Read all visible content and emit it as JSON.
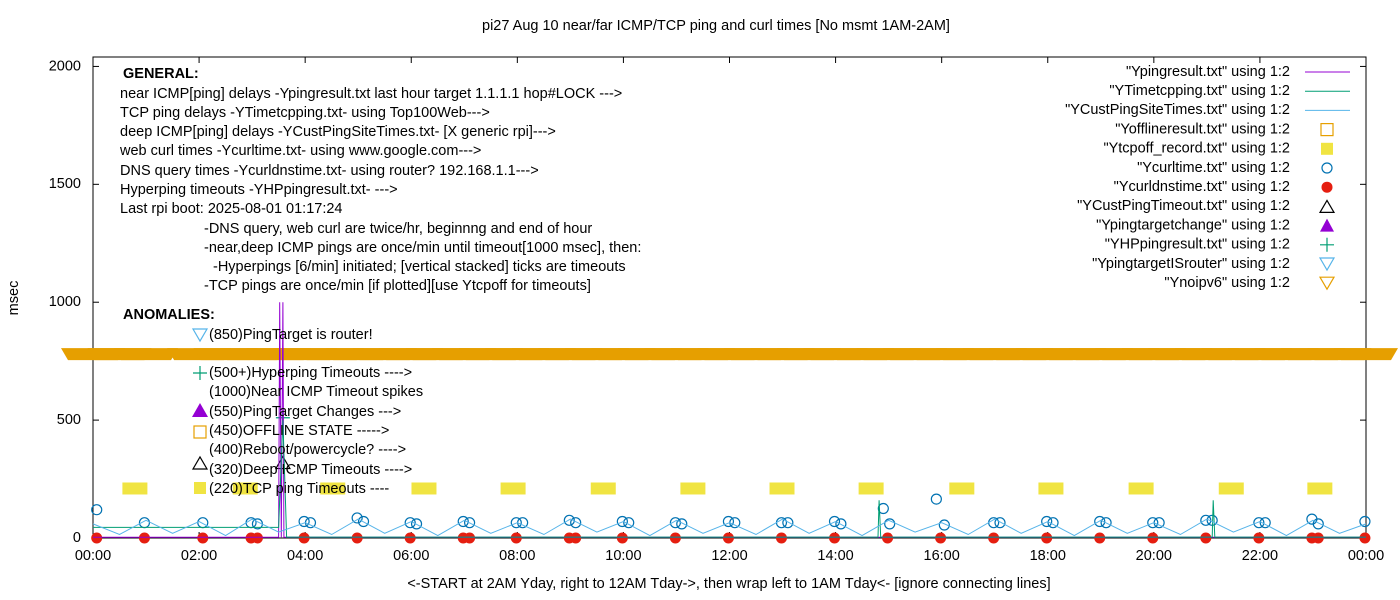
{
  "chart_data": {
    "type": "line",
    "title": "pi27 Aug 10  near/far ICMP/TCP ping and curl times [No msmt 1AM-2AM]",
    "x_label": "<-START at 2AM Yday, right to 12AM Tday->, then wrap left to 1AM Tday<- [ignore connecting lines]",
    "y_label": "msec",
    "xlim": [
      0,
      24
    ],
    "ylim": [
      0,
      2040
    ],
    "xticks": [
      {
        "value": 0,
        "label": "00:00"
      },
      {
        "value": 2,
        "label": "02:00"
      },
      {
        "value": 4,
        "label": "04:00"
      },
      {
        "value": 6,
        "label": "06:00"
      },
      {
        "value": 8,
        "label": "08:00"
      },
      {
        "value": 10,
        "label": "10:00"
      },
      {
        "value": 12,
        "label": "12:00"
      },
      {
        "value": 14,
        "label": "14:00"
      },
      {
        "value": 16,
        "label": "16:00"
      },
      {
        "value": 18,
        "label": "18:00"
      },
      {
        "value": 20,
        "label": "20:00"
      },
      {
        "value": 22,
        "label": "22:00"
      },
      {
        "value": 24,
        "label": "00:00"
      }
    ],
    "yticks": [
      0,
      500,
      1000,
      1500,
      2000
    ],
    "legend_position": "top-right",
    "series": [
      {
        "name": "\"Ypingresult.txt\" using 1:2",
        "color": "#9400d3",
        "style": "line",
        "x": [
          0,
          3.5,
          3.52,
          3.55,
          3.58,
          3.6,
          24
        ],
        "values": [
          3,
          3,
          1000,
          3,
          1000,
          3,
          3
        ]
      },
      {
        "name": "\"YTimetcpping.txt\" using 1:2",
        "color": "#009e73",
        "style": "line",
        "x": [
          0,
          3.5,
          3.58,
          3.65,
          14.8,
          14.82,
          14.85,
          21.1,
          21.12,
          21.15,
          24
        ],
        "values": [
          45,
          45,
          500,
          4,
          4,
          160,
          4,
          4,
          160,
          4,
          4
        ]
      },
      {
        "name": "\"YCustPingSiteTimes.txt\" using 1:2",
        "color": "#56b4e9",
        "style": "line",
        "x": [
          0,
          0.5,
          1,
          1.5,
          2,
          2.5,
          3,
          3.5,
          4,
          4.5,
          5,
          5.5,
          6,
          6.5,
          7,
          7.5,
          8,
          8.5,
          9,
          9.5,
          10,
          10.5,
          11,
          11.5,
          12,
          12.5,
          13,
          13.5,
          14,
          14.5,
          15,
          15.5,
          16,
          16.5,
          17,
          17.5,
          18,
          18.5,
          19,
          19.5,
          20,
          20.5,
          21,
          21.5,
          22,
          22.5,
          23,
          23.5,
          24
        ],
        "values": [
          60,
          15,
          75,
          20,
          70,
          10,
          80,
          25,
          65,
          15,
          80,
          20,
          70,
          10,
          75,
          20,
          65,
          15,
          80,
          25,
          70,
          10,
          75,
          20,
          65,
          15,
          80,
          20,
          70,
          10,
          75,
          25,
          65,
          15,
          80,
          20,
          70,
          10,
          75,
          20,
          65,
          15,
          80,
          25,
          70,
          10,
          75,
          20,
          60
        ]
      },
      {
        "name": "\"Yofflineresult.txt\" using 1:2",
        "color": "#e69f00",
        "style": "point",
        "marker": "square-open",
        "x": [],
        "values": []
      },
      {
        "name": "\"Ytcpoff_record.txt\" using 1:2",
        "color": "#f0e442",
        "style": "point",
        "marker": "block",
        "x": [
          0.79,
          2.87,
          4.52,
          6.24,
          7.92,
          9.62,
          11.31,
          12.99,
          14.67,
          16.38,
          18.06,
          19.76,
          21.46,
          23.13
        ],
        "values": [
          210,
          210,
          210,
          210,
          210,
          210,
          210,
          210,
          210,
          210,
          210,
          210,
          210,
          210
        ]
      },
      {
        "name": "\"Ycurltime.txt\" using 1:2",
        "color": "#0072b2",
        "style": "point",
        "marker": "circle-open",
        "x": [
          0.07,
          0.97,
          2.07,
          2.98,
          3.1,
          3.98,
          4.1,
          4.98,
          5.1,
          5.98,
          6.1,
          6.98,
          7.1,
          7.98,
          8.1,
          8.98,
          9.1,
          9.98,
          10.1,
          10.98,
          11.1,
          11.98,
          12.1,
          12.98,
          13.1,
          13.98,
          14.1,
          14.9,
          15.02,
          15.9,
          16.05,
          16.98,
          17.1,
          17.98,
          18.1,
          18.98,
          19.1,
          19.98,
          20.1,
          20.98,
          21.1,
          21.98,
          22.1,
          22.98,
          23.1,
          23.98
        ],
        "values": [
          120,
          65,
          65,
          65,
          60,
          70,
          65,
          85,
          70,
          65,
          60,
          70,
          65,
          65,
          65,
          75,
          65,
          70,
          65,
          65,
          60,
          70,
          65,
          65,
          65,
          70,
          60,
          125,
          60,
          165,
          55,
          65,
          65,
          70,
          65,
          70,
          65,
          65,
          65,
          75,
          75,
          65,
          65,
          80,
          60,
          70
        ]
      },
      {
        "name": "\"Ycurldnstime.txt\" using 1:2",
        "color": "#e51e10",
        "style": "point",
        "marker": "circle",
        "x": [
          0.07,
          0.97,
          2.07,
          2.98,
          3.1,
          3.98,
          4.98,
          5.98,
          6.98,
          7.1,
          7.98,
          8.98,
          9.1,
          9.98,
          10.98,
          11.98,
          12.98,
          13.98,
          14.98,
          15.98,
          16.98,
          17.98,
          18.98,
          19.98,
          20.98,
          21.98,
          22.98,
          23.1,
          23.98
        ],
        "values": [
          0,
          0,
          0,
          0,
          0,
          0,
          0,
          0,
          0,
          0,
          0,
          0,
          0,
          0,
          0,
          0,
          0,
          0,
          0,
          0,
          0,
          0,
          0,
          0,
          0,
          0,
          0,
          0,
          0
        ]
      },
      {
        "name": "\"YCustPingTimeout.txt\" using 1:2",
        "color": "#000000",
        "style": "point",
        "marker": "triangle-open",
        "x": [
          3.58
        ],
        "values": [
          320
        ]
      },
      {
        "name": "\"Ypingtargetchange\" using 1:2",
        "color": "#9400d3",
        "style": "point",
        "marker": "triangle",
        "x": [],
        "values": []
      },
      {
        "name": "\"YHPpingresult.txt\" using 1:2",
        "color": "#009e73",
        "style": "point",
        "marker": "plus",
        "x": [
          3.58
        ],
        "values": [
          510
        ]
      },
      {
        "name": "\"YpingtargetISrouter\" using 1:2",
        "color": "#56b4e9",
        "style": "point",
        "marker": "triangle-down-open",
        "x": [],
        "values": []
      },
      {
        "name": "\"Ynoipv6\" using 1:2",
        "color": "#e69f00",
        "style": "point",
        "marker": "triangle-down-band",
        "x": [
          0,
          0.5,
          1,
          2,
          2.5,
          3,
          3.5,
          4,
          4.5,
          5,
          5.5,
          6,
          6.5,
          7,
          7.5,
          8,
          8.5,
          9,
          9.5,
          10,
          10.5,
          11,
          11.5,
          12,
          12.5,
          13,
          13.5,
          14,
          14.5,
          15,
          15.5,
          16,
          16.5,
          17,
          17.5,
          18,
          18.5,
          19,
          19.5,
          20,
          20.5,
          21,
          21.5,
          22,
          22.5,
          23,
          23.5,
          24
        ],
        "values": [
          780,
          780,
          780,
          780,
          780,
          780,
          780,
          780,
          780,
          780,
          780,
          780,
          780,
          780,
          780,
          780,
          780,
          780,
          780,
          780,
          780,
          780,
          780,
          780,
          780,
          780,
          780,
          780,
          780,
          780,
          780,
          780,
          780,
          780,
          780,
          780,
          780,
          780,
          780,
          780,
          780,
          780,
          780,
          780,
          780,
          780,
          780,
          780
        ]
      }
    ],
    "annotations": [
      "GENERAL:",
      "near ICMP[ping] delays -Ypingresult.txt last hour target 1.1.1.1 hop#LOCK --->",
      "TCP ping delays -YTimetcpping.txt- using Top100Web--->",
      "deep ICMP[ping] delays -YCustPingSiteTimes.txt- [X generic rpi]--->",
      "web curl times -Ycurltime.txt- using www.google.com--->",
      "DNS query times -Ycurldnstime.txt- using router? 192.168.1.1--->",
      "Hyperping timeouts -YHPpingresult.txt- --->",
      "Last rpi boot: 2025-08-01 01:17:24",
      "-DNS query, web curl are twice/hr, beginnng and end of hour",
      "-near,deep ICMP pings are once/min until timeout[1000 msec], then:",
      "-Hyperpings [6/min] initiated; [vertical stacked] ticks are timeouts",
      "-TCP pings are once/min [if plotted][use Ytcpoff for timeouts]",
      "ANOMALIES:",
      "(850)PingTarget is router!",
      "(500+)Hyperping Timeouts ---->",
      "(1000)Near ICMP Timeout spikes",
      "(550)PingTarget Changes --->",
      "(450)OFFLINE STATE ----->",
      "(400)Reboot/powercycle? ---->",
      "(320)Deep ICMP Timeouts ---->",
      "(220)TCP ping Timeouts ----"
    ]
  }
}
